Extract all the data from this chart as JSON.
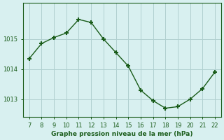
{
  "x": [
    7,
    8,
    9,
    10,
    11,
    12,
    13,
    14,
    15,
    16,
    17,
    18,
    19,
    20,
    21,
    22
  ],
  "y": [
    1014.35,
    1014.85,
    1015.05,
    1015.2,
    1015.65,
    1015.55,
    1015.0,
    1014.55,
    1014.1,
    1013.3,
    1012.95,
    1012.7,
    1012.75,
    1013.0,
    1013.35,
    1013.9
  ],
  "xlim": [
    6.5,
    22.5
  ],
  "ylim": [
    1012.4,
    1016.2
  ],
  "yticks": [
    1013,
    1014,
    1015
  ],
  "xticks": [
    7,
    8,
    9,
    10,
    11,
    12,
    13,
    14,
    15,
    16,
    17,
    18,
    19,
    20,
    21,
    22
  ],
  "line_color": "#1a5c1a",
  "marker": "+",
  "bg_color": "#d8f0f0",
  "grid_color": "#b0d0d0",
  "xlabel": "Graphe pression niveau de la mer (hPa)",
  "xlabel_color": "#1a5c1a",
  "tick_color": "#1a5c1a"
}
